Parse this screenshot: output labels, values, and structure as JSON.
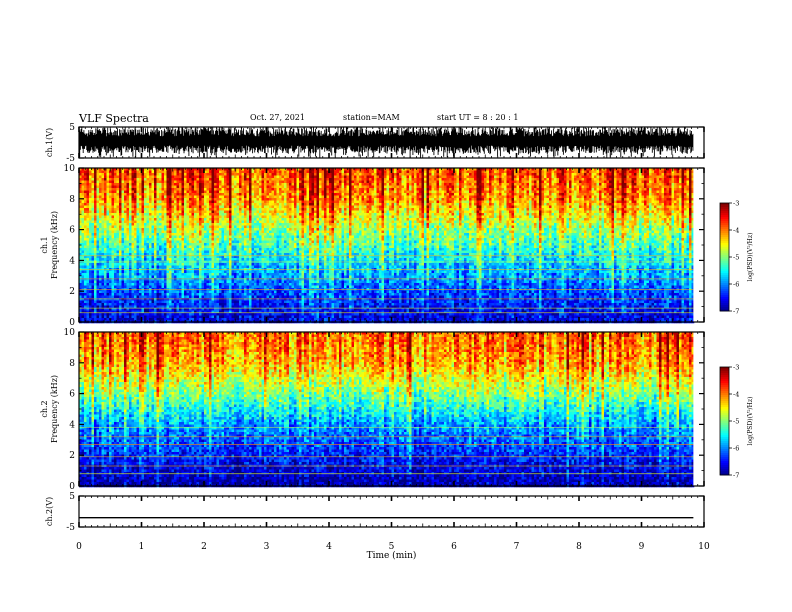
{
  "header": {
    "title": "VLF Spectra",
    "date": "Oct. 27, 2021",
    "station": "station=MAM",
    "start": "start UT =  8 : 20 : 1"
  },
  "chart_data": [
    {
      "type": "line",
      "name": "ch1-waveform",
      "ylabel": "ch.1(V)",
      "xlim": [
        0,
        10
      ],
      "ylim": [
        -5,
        5
      ],
      "yticks": [
        "5",
        "-5"
      ],
      "description_series": "dense noise waveform, mostly between -3 and 5 V",
      "x_end": 9.83
    },
    {
      "type": "heatmap",
      "name": "ch1-spectrogram",
      "ylabel": "ch.1 Frequency (kHz)",
      "xlim": [
        0,
        10
      ],
      "ylim": [
        0,
        10
      ],
      "yticks": [
        "0",
        "2",
        "4",
        "6",
        "8",
        "10"
      ],
      "x_end": 9.83,
      "colorbar": {
        "label": "log(PSD)(V²/Hz)",
        "ticks": [
          "-3",
          "-4",
          "-5",
          "-6",
          "-7"
        ],
        "range": [
          -7,
          -3
        ]
      },
      "psd_profile": [
        {
          "freq_khz": 0.5,
          "log_psd": -6.6
        },
        {
          "freq_khz": 2,
          "log_psd": -6.2
        },
        {
          "freq_khz": 4,
          "log_psd": -5.6
        },
        {
          "freq_khz": 6,
          "log_psd": -4.9
        },
        {
          "freq_khz": 8,
          "log_psd": -4.1
        },
        {
          "freq_khz": 10,
          "log_psd": -3.8
        }
      ]
    },
    {
      "type": "heatmap",
      "name": "ch2-spectrogram",
      "ylabel": "ch.2 Frequency (kHz)",
      "xlim": [
        0,
        10
      ],
      "ylim": [
        0,
        10
      ],
      "yticks": [
        "0",
        "2",
        "4",
        "6",
        "8",
        "10"
      ],
      "x_end": 9.83,
      "colorbar": {
        "label": "log(PSD)(V²/Hz)",
        "ticks": [
          "-3",
          "-4",
          "-5",
          "-6",
          "-7"
        ],
        "range": [
          -7,
          -3
        ]
      },
      "psd_profile": [
        {
          "freq_khz": 0.5,
          "log_psd": -6.8
        },
        {
          "freq_khz": 2,
          "log_psd": -6.4
        },
        {
          "freq_khz": 4,
          "log_psd": -5.9
        },
        {
          "freq_khz": 6,
          "log_psd": -5.0
        },
        {
          "freq_khz": 8,
          "log_psd": -4.2
        },
        {
          "freq_khz": 10,
          "log_psd": -3.9
        }
      ]
    },
    {
      "type": "line",
      "name": "ch2-waveform",
      "ylabel": "ch.2(V)",
      "xlim": [
        0,
        10
      ],
      "ylim": [
        -5,
        5
      ],
      "yticks": [
        "5",
        "-5"
      ],
      "x_end": 9.83,
      "values_x": [
        0,
        9.83
      ],
      "values_y": [
        -2,
        -2
      ]
    }
  ],
  "xaxis": {
    "label": "Time  (min)",
    "ticks": [
      "0",
      "1",
      "2",
      "3",
      "4",
      "5",
      "6",
      "7",
      "8",
      "9",
      "10"
    ]
  }
}
